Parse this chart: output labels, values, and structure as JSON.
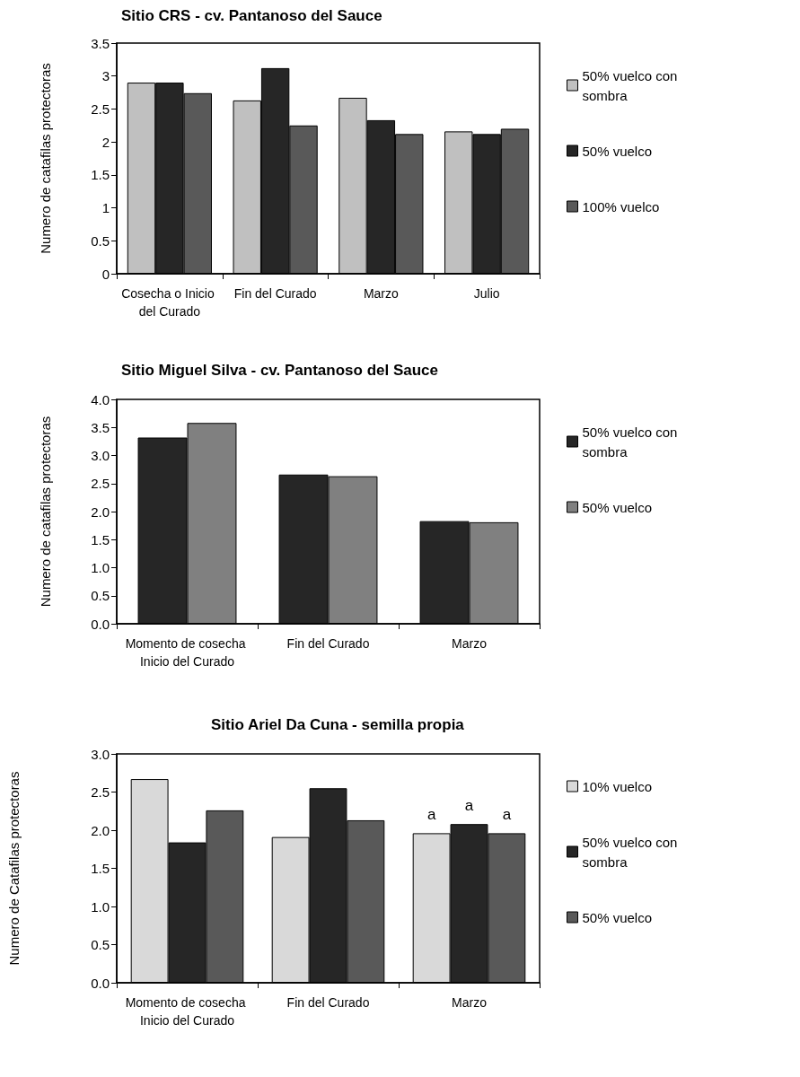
{
  "chart_data": [
    {
      "type": "bar",
      "title": "Sitio CRS - cv. Pantanoso del Sauce",
      "ylabel": "Numero de catafilas protectoras",
      "categories": [
        "Cosecha o Inicio del Curado",
        "Fin del Curado",
        "Marzo",
        "Julio"
      ],
      "series": [
        {
          "name": "50% vuelco con sombra",
          "color": "#c0c0c0",
          "values": [
            2.9,
            2.63,
            2.67,
            2.16
          ]
        },
        {
          "name": "50% vuelco",
          "color": "#262626",
          "values": [
            2.9,
            3.12,
            2.33,
            2.12
          ]
        },
        {
          "name": "100% vuelco",
          "color": "#595959",
          "values": [
            2.74,
            2.25,
            2.12,
            2.2
          ]
        }
      ],
      "ylim": [
        0,
        3.5
      ],
      "yticks": [
        0,
        0.5,
        1,
        1.5,
        2,
        2.5,
        3,
        3.5
      ],
      "grid": false,
      "legend": "right"
    },
    {
      "type": "bar",
      "title": "Sitio Miguel Silva - cv. Pantanoso del Sauce",
      "ylabel": "Numero de catafilas protectoras",
      "categories": [
        "Momento de cosecha Inicio del Curado",
        "Fin del Curado",
        "Marzo"
      ],
      "series": [
        {
          "name": "50% vuelco con sombra",
          "color": "#262626",
          "values": [
            3.32,
            2.66,
            1.83
          ]
        },
        {
          "name": "50% vuelco",
          "color": "#808080",
          "values": [
            3.58,
            2.63,
            1.81
          ]
        }
      ],
      "ylim": [
        0,
        4
      ],
      "yticks": [
        {
          "value": 0,
          "label": "0.0"
        },
        {
          "value": 0.5,
          "label": "0.5"
        },
        {
          "value": 1,
          "label": "1.0"
        },
        {
          "value": 1.5,
          "label": "1.5"
        },
        {
          "value": 2,
          "label": "2.0"
        },
        {
          "value": 2.5,
          "label": "2.5"
        },
        {
          "value": 3,
          "label": "3.0"
        },
        {
          "value": 3.5,
          "label": "3.5"
        },
        {
          "value": 4,
          "label": "4.0"
        }
      ],
      "grid": false,
      "legend": "right"
    },
    {
      "type": "bar",
      "title": "Sitio Ariel Da Cuna - semilla propia",
      "ylabel": "Numero de Catafilas protectoras",
      "categories": [
        "Momento de cosecha Inicio del Curado",
        "Fin del Curado",
        "Marzo"
      ],
      "series": [
        {
          "name": "10% vuelco",
          "color": "#d9d9d9",
          "values": [
            2.67,
            1.91,
            1.96
          ],
          "value_labels": [
            null,
            null,
            "a"
          ]
        },
        {
          "name": "50% vuelco con sombra",
          "color": "#262626",
          "values": [
            1.84,
            2.55,
            2.08
          ],
          "value_labels": [
            null,
            null,
            "a"
          ]
        },
        {
          "name": "50% vuelco",
          "color": "#595959",
          "values": [
            2.26,
            2.13,
            1.96
          ],
          "value_labels": [
            null,
            null,
            "a"
          ]
        }
      ],
      "ylim": [
        0,
        3
      ],
      "yticks": [
        {
          "value": 0,
          "label": "0.0"
        },
        {
          "value": 0.5,
          "label": "0.5"
        },
        {
          "value": 1,
          "label": "1.0"
        },
        {
          "value": 1.5,
          "label": "1.5"
        },
        {
          "value": 2,
          "label": "2.0"
        },
        {
          "value": 2.5,
          "label": "2.5"
        },
        {
          "value": 3,
          "label": "3.0"
        }
      ],
      "grid": false,
      "legend": "right"
    }
  ]
}
